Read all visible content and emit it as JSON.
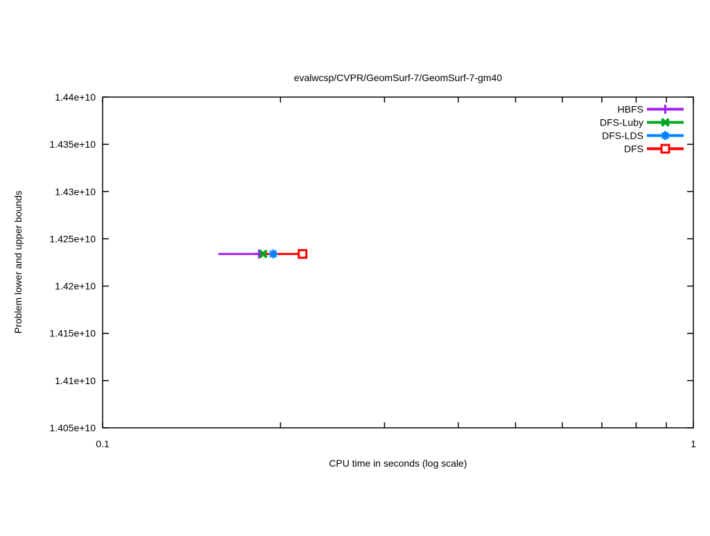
{
  "chart_data": {
    "type": "line",
    "title": "evalwcsp/CVPR/GeomSurf-7/GeomSurf-7-gm40",
    "xlabel": "CPU time in seconds (log scale)",
    "ylabel": "Problem lower and upper bounds",
    "x_scale": "log",
    "xlim": [
      0.1,
      1
    ],
    "ylim": [
      14050000000,
      14400000000
    ],
    "grid": false,
    "legend_position": "inside-top-right",
    "border_color": "#000000",
    "x_ticks": [
      {
        "value": 0.1,
        "label": "0.1"
      },
      {
        "value": 0.2,
        "label": ""
      },
      {
        "value": 0.3,
        "label": ""
      },
      {
        "value": 0.4,
        "label": ""
      },
      {
        "value": 0.5,
        "label": ""
      },
      {
        "value": 0.6,
        "label": ""
      },
      {
        "value": 0.7,
        "label": ""
      },
      {
        "value": 0.8,
        "label": ""
      },
      {
        "value": 0.9,
        "label": ""
      },
      {
        "value": 1,
        "label": "1"
      }
    ],
    "y_ticks": [
      {
        "value": 14400000000,
        "label": "1.44e+10"
      },
      {
        "value": 14350000000,
        "label": "1.435e+10"
      },
      {
        "value": 14300000000,
        "label": "1.43e+10"
      },
      {
        "value": 14250000000,
        "label": "1.425e+10"
      },
      {
        "value": 14200000000,
        "label": "1.42e+10"
      },
      {
        "value": 14150000000,
        "label": "1.415e+10"
      },
      {
        "value": 14100000000,
        "label": "1.41e+10"
      },
      {
        "value": 14050000000,
        "label": "1.405e+10"
      }
    ],
    "series": [
      {
        "name": "HBFS",
        "color": "#a020f0",
        "marker": "plus",
        "points": [
          {
            "x": 0.157,
            "y": 14234000000
          },
          {
            "x": 0.184,
            "y": 14234000000
          }
        ],
        "marker_points": [
          {
            "x": 0.184,
            "y": 14234000000
          }
        ]
      },
      {
        "name": "DFS-Luby",
        "color": "#00a520",
        "marker": "cross",
        "points": [
          {
            "x": 0.1845,
            "y": 14234000000
          },
          {
            "x": 0.189,
            "y": 14234000000
          }
        ],
        "marker_points": [
          {
            "x": 0.187,
            "y": 14234000000
          }
        ]
      },
      {
        "name": "DFS-LDS",
        "color": "#0080ff",
        "marker": "asterisk",
        "points": [
          {
            "x": 0.1945,
            "y": 14234000000
          }
        ],
        "marker_points": [
          {
            "x": 0.1945,
            "y": 14234000000
          }
        ]
      },
      {
        "name": "DFS",
        "color": "#ff0000",
        "marker": "open-square",
        "points": [
          {
            "x": 0.189,
            "y": 14234000000
          },
          {
            "x": 0.218,
            "y": 14234000000
          }
        ],
        "marker_points": [
          {
            "x": 0.218,
            "y": 14234000000
          }
        ]
      }
    ]
  }
}
